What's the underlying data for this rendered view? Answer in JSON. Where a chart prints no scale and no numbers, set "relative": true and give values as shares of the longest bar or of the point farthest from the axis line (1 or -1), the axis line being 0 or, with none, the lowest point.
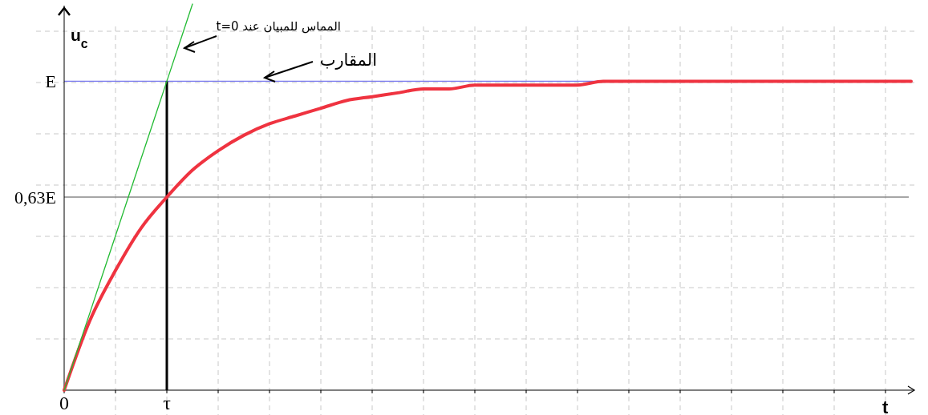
{
  "chart_data": {
    "type": "line",
    "relative": true,
    "xlabel": "t",
    "ylabel": "u$_{c}$",
    "categories": [
      "0",
      null,
      null,
      null,
      "τ",
      null,
      null,
      null,
      null,
      null,
      null,
      null,
      null,
      null,
      null,
      null,
      null,
      null,
      null,
      null,
      null,
      null,
      null,
      null,
      null,
      null,
      null,
      null,
      null,
      null,
      null,
      null,
      null,
      null
    ],
    "grid": true,
    "series": [
      {
        "color": "#ef3340",
        "values": [
          0,
          0.18,
          0.31,
          0.42,
          0.5,
          0.57,
          0.62,
          0.66,
          0.69,
          0.71,
          0.73,
          0.75,
          0.76,
          0.77,
          0.78,
          0.78,
          0.79,
          0.79,
          0.79,
          0.79,
          0.79,
          0.8,
          0.8,
          0.8,
          0.8,
          0.8,
          0.8,
          0.8,
          0.8,
          0.8,
          0.8,
          0.8,
          0.8,
          0.8
        ]
      },
      {
        "color": "#22bb33",
        "values": [
          0,
          0.2,
          0.4,
          0.6,
          0.8,
          1,
          null,
          null,
          null,
          null,
          null,
          null,
          null,
          null,
          null,
          null,
          null,
          null,
          null,
          null,
          null,
          null,
          null,
          null,
          null,
          null,
          null,
          null,
          null,
          null,
          null,
          null,
          null,
          null
        ]
      }
    ],
    "ref_lines": [
      {
        "axis": "y",
        "value": 0.8,
        "label": "E",
        "color": "#7777ee"
      },
      {
        "axis": "y",
        "value": 0.5,
        "label": "0,63E",
        "color": "#888888"
      },
      {
        "axis": "x",
        "value": "τ",
        "color": "#000000"
      }
    ],
    "annotations": [
      "المماس للمبيان عند t=0",
      "المقارب"
    ]
  }
}
